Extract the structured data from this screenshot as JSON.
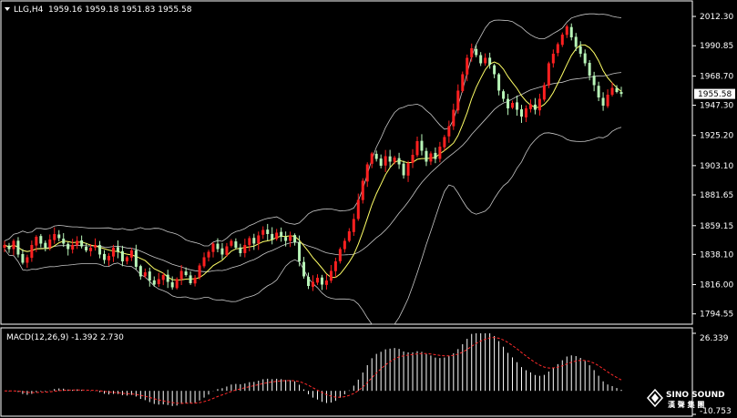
{
  "header": {
    "symbol_label": "LLG,H4",
    "ohlc_label": "1959.16 1959.18 1951.83 1955.58"
  },
  "colors": {
    "background": "#000000",
    "up_candle": "#ff2020",
    "down_candle": "#b8f5b8",
    "ma": "#ffff66",
    "bands": "#c8c8c8",
    "frame": "#ffffff",
    "macd_hist": "#ffffff",
    "macd_signal": "#ff2a2a",
    "current_price_box": "#ffffff"
  },
  "icons": {
    "menu": "triangle-down-icon",
    "logo": "sino-sound-diamond-icon"
  },
  "watermark": {
    "brand": "SINO SOUND",
    "subtitle": "漢 聲 集 團"
  },
  "chart_data": [
    {
      "type": "candlestick",
      "name": "LLG,H4",
      "ylim": [
        1787.0,
        2023.0
      ],
      "y_ticks": [
        "2012.30",
        "1990.85",
        "1968.70",
        "1947.30",
        "1925.20",
        "1903.10",
        "1881.65",
        "1859.15",
        "1838.10",
        "1816.00",
        "1794.55"
      ],
      "current_price": "1955.58",
      "indicators": [
        "moving average",
        "bollinger bands"
      ],
      "close": [
        1845,
        1842,
        1848,
        1838,
        1832,
        1836,
        1845,
        1851,
        1846,
        1843,
        1849,
        1853,
        1850,
        1846,
        1842,
        1845,
        1848,
        1844,
        1841,
        1843,
        1845,
        1838,
        1834,
        1837,
        1843,
        1840,
        1833,
        1836,
        1841,
        1829,
        1822,
        1825,
        1819,
        1816,
        1820,
        1823,
        1818,
        1814,
        1820,
        1826,
        1823,
        1817,
        1821,
        1830,
        1836,
        1840,
        1846,
        1842,
        1838,
        1844,
        1848,
        1843,
        1839,
        1845,
        1850,
        1846,
        1852,
        1856,
        1853,
        1849,
        1854,
        1851,
        1848,
        1852,
        1847,
        1833,
        1822,
        1815,
        1818,
        1821,
        1816,
        1819,
        1826,
        1833,
        1842,
        1848,
        1855,
        1864,
        1878,
        1892,
        1904,
        1912,
        1908,
        1903,
        1910,
        1906,
        1909,
        1904,
        1896,
        1905,
        1911,
        1921,
        1914,
        1906,
        1912,
        1908,
        1917,
        1924,
        1932,
        1944,
        1958,
        1970,
        1982,
        1989,
        1984,
        1978,
        1982,
        1977,
        1970,
        1958,
        1952,
        1945,
        1949,
        1944,
        1939,
        1945,
        1948,
        1944,
        1952,
        1962,
        1978,
        1985,
        1992,
        1999,
        2005,
        1997,
        1990,
        1985,
        1978,
        1969,
        1962,
        1953,
        1947,
        1955,
        1960,
        1957,
        1955.58
      ],
      "macd": {
        "label": "MACD(12,26,9) -1.392 2.730",
        "params": [
          12,
          26,
          9
        ],
        "value": -1.392,
        "signal_value": 2.73,
        "ylim": [
          -10.753,
          26.339
        ],
        "y_ticks": [
          "26.339",
          "-10.753"
        ]
      }
    }
  ]
}
